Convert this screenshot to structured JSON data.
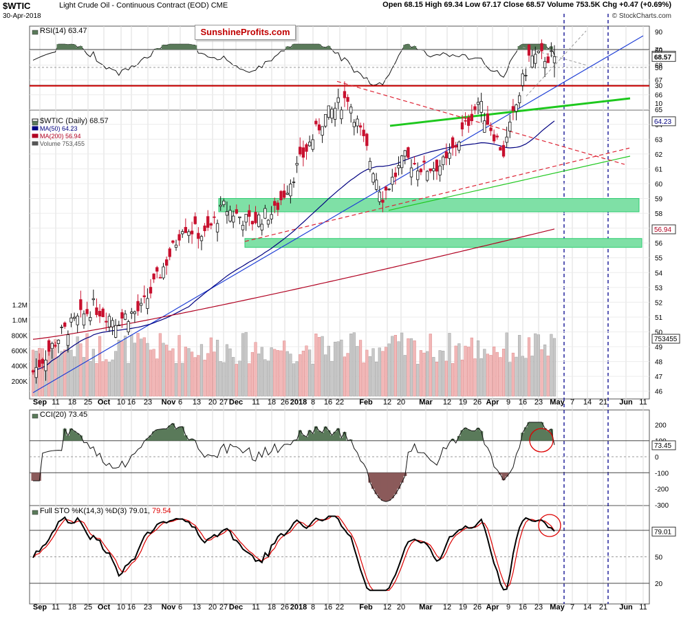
{
  "header": {
    "symbol": "$WTIC",
    "name": "Light Crude Oil - Continuous Contract (EOD)",
    "exchange": "CME",
    "date": "30-Apr-2018",
    "open": "Open 68.15",
    "high": "High 69.34",
    "low": "Low 67.17",
    "close": "Close 68.57",
    "volume": "Volume 753.5K",
    "chg": "Chg +0.47 (+0.69%)",
    "credit": "© StockCharts.com",
    "badge": "SunshineProfits.com",
    "ohlc_line": "Open 68.15  High 69.34  Low 67.17  Close 68.57  Volume 753.5K  Chg +0.47 (+0.69%)"
  },
  "panels": {
    "rsi": {
      "label": "RSI(14) 63.47",
      "value_badge": "63.47",
      "ticks": [
        "90",
        "70",
        "50",
        "30",
        "10"
      ],
      "levels": [
        70,
        50,
        30
      ]
    },
    "price": {
      "legend": [
        "$WTIC (Daily) 68.57",
        "MA(50) 64.23",
        "MA(200) 56.94",
        "Volume 753,455"
      ],
      "value_badges": [
        "68.57",
        "64.23",
        "56.94",
        "753455"
      ],
      "ticks": [
        "69",
        "68",
        "67",
        "66",
        "65",
        "64",
        "63",
        "62",
        "61",
        "60",
        "59",
        "58",
        "57",
        "56",
        "55",
        "54",
        "53",
        "52",
        "51",
        "50",
        "49",
        "48",
        "47",
        "46"
      ],
      "volume_ticks": [
        "1.2M",
        "1.0M",
        "800K",
        "600K",
        "400K",
        "200K"
      ]
    },
    "cci": {
      "label": "CCI(20) 73.45",
      "value_badge": "73.45",
      "ticks": [
        "200",
        "100",
        "0",
        "-100",
        "-200",
        "-300"
      ]
    },
    "sto": {
      "label_main": "Full STO %K(14,3) %D(3) 79.01,",
      "label_red": "79.54",
      "value_badge": "79.01",
      "ticks": [
        "80",
        "50",
        "20"
      ]
    }
  },
  "x_axis": {
    "labels": [
      "Sep",
      "11",
      "18",
      "25",
      "Oct",
      "10",
      "16",
      "23",
      "Nov",
      "6",
      "13",
      "20",
      "27",
      "Dec",
      "11",
      "18",
      "26",
      "2018",
      "8",
      "16",
      "22",
      "Feb",
      "12",
      "20",
      "Mar",
      "12",
      "19",
      "26",
      "Apr",
      "9",
      "16",
      "23",
      "May",
      "7",
      "14",
      "21",
      "Jun",
      "11"
    ],
    "bold": [
      "Sep",
      "Oct",
      "Nov",
      "Dec",
      "2018",
      "Feb",
      "Mar",
      "Apr",
      "May",
      "Jun"
    ]
  },
  "chart_data": {
    "type": "candlestick",
    "title": "$WTIC Light Crude Oil - Continuous Contract (EOD)",
    "period": "Daily, Sep 2017 - Apr 30 2018",
    "last": {
      "open": 68.15,
      "high": 69.34,
      "low": 67.17,
      "close": 68.57,
      "volume": 753455
    },
    "price_ylim": [
      45.5,
      70
    ],
    "price_key_points": [
      {
        "date": "2017-09-01",
        "close": 47.3
      },
      {
        "date": "2017-09-15",
        "close": 49.9
      },
      {
        "date": "2017-09-29",
        "close": 51.7
      },
      {
        "date": "2017-10-10",
        "close": 50.8
      },
      {
        "date": "2017-10-20",
        "close": 51.5
      },
      {
        "date": "2017-11-03",
        "close": 55.6
      },
      {
        "date": "2017-11-08",
        "close": 57.2
      },
      {
        "date": "2017-11-17",
        "close": 56.5
      },
      {
        "date": "2017-11-28",
        "close": 58.4
      },
      {
        "date": "2017-12-08",
        "close": 57.4
      },
      {
        "date": "2017-12-20",
        "close": 58.1
      },
      {
        "date": "2018-01-04",
        "close": 61.9
      },
      {
        "date": "2018-01-12",
        "close": 64.3
      },
      {
        "date": "2018-01-25",
        "close": 65.9
      },
      {
        "date": "2018-02-09",
        "close": 59.2
      },
      {
        "date": "2018-02-21",
        "close": 61.7
      },
      {
        "date": "2018-03-01",
        "close": 61.0
      },
      {
        "date": "2018-03-12",
        "close": 61.4
      },
      {
        "date": "2018-03-26",
        "close": 65.5
      },
      {
        "date": "2018-04-06",
        "close": 62.1
      },
      {
        "date": "2018-04-18",
        "close": 68.5
      },
      {
        "date": "2018-04-30",
        "close": 68.57
      }
    ],
    "moving_averages": [
      {
        "name": "MA(50)",
        "last": 64.23
      },
      {
        "name": "MA(200)",
        "last": 56.94
      }
    ],
    "indicators": {
      "RSI(14)": 63.47,
      "CCI(20)": 73.45,
      "Full STO %K": 79.01,
      "Full STO %D": 79.54
    },
    "horizontal_levels": [
      66.6
    ],
    "support_zones": [
      [
        58.1,
        59.0
      ],
      [
        55.7,
        56.3
      ]
    ],
    "colors": {
      "up": "#111111",
      "down": "#c8102e",
      "ma50": "#000080",
      "ma200": "#b00020",
      "rsi_fill": "#5a7a5a",
      "cci_neg_fill": "#8b5a5a",
      "zone": "#2ecc71",
      "horizontal": "#cc0000",
      "trend_blue": "#1f3fd6",
      "trend_green": "#1ec81e"
    }
  }
}
